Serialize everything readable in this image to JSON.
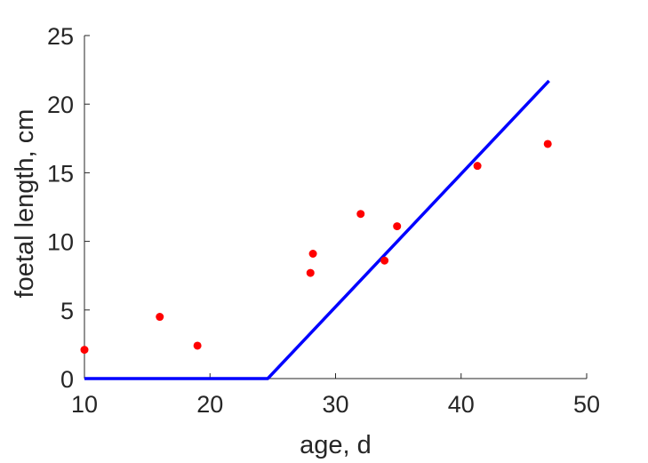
{
  "chart_data": {
    "type": "scatter",
    "xlabel": "age, d",
    "ylabel": "foetal length, cm",
    "xlim": [
      10,
      50
    ],
    "ylim": [
      0,
      25
    ],
    "xticks": [
      "10",
      "20",
      "30",
      "40",
      "50"
    ],
    "yticks": [
      "0",
      "5",
      "10",
      "15",
      "20",
      "25"
    ],
    "grid": false,
    "series": [
      {
        "kind": "scatter",
        "color": "#ff0000",
        "x": [
          10.0,
          16.0,
          19.0,
          28.0,
          28.2,
          32.0,
          33.9,
          34.9,
          41.3,
          46.9
        ],
        "y": [
          2.1,
          4.5,
          2.4,
          7.7,
          9.1,
          12.0,
          8.6,
          11.1,
          15.5,
          17.1
        ]
      },
      {
        "kind": "line",
        "color": "#0000ff",
        "x": [
          10.0,
          24.6,
          47.0
        ],
        "y": [
          0.0,
          0.0,
          21.7
        ]
      }
    ]
  }
}
